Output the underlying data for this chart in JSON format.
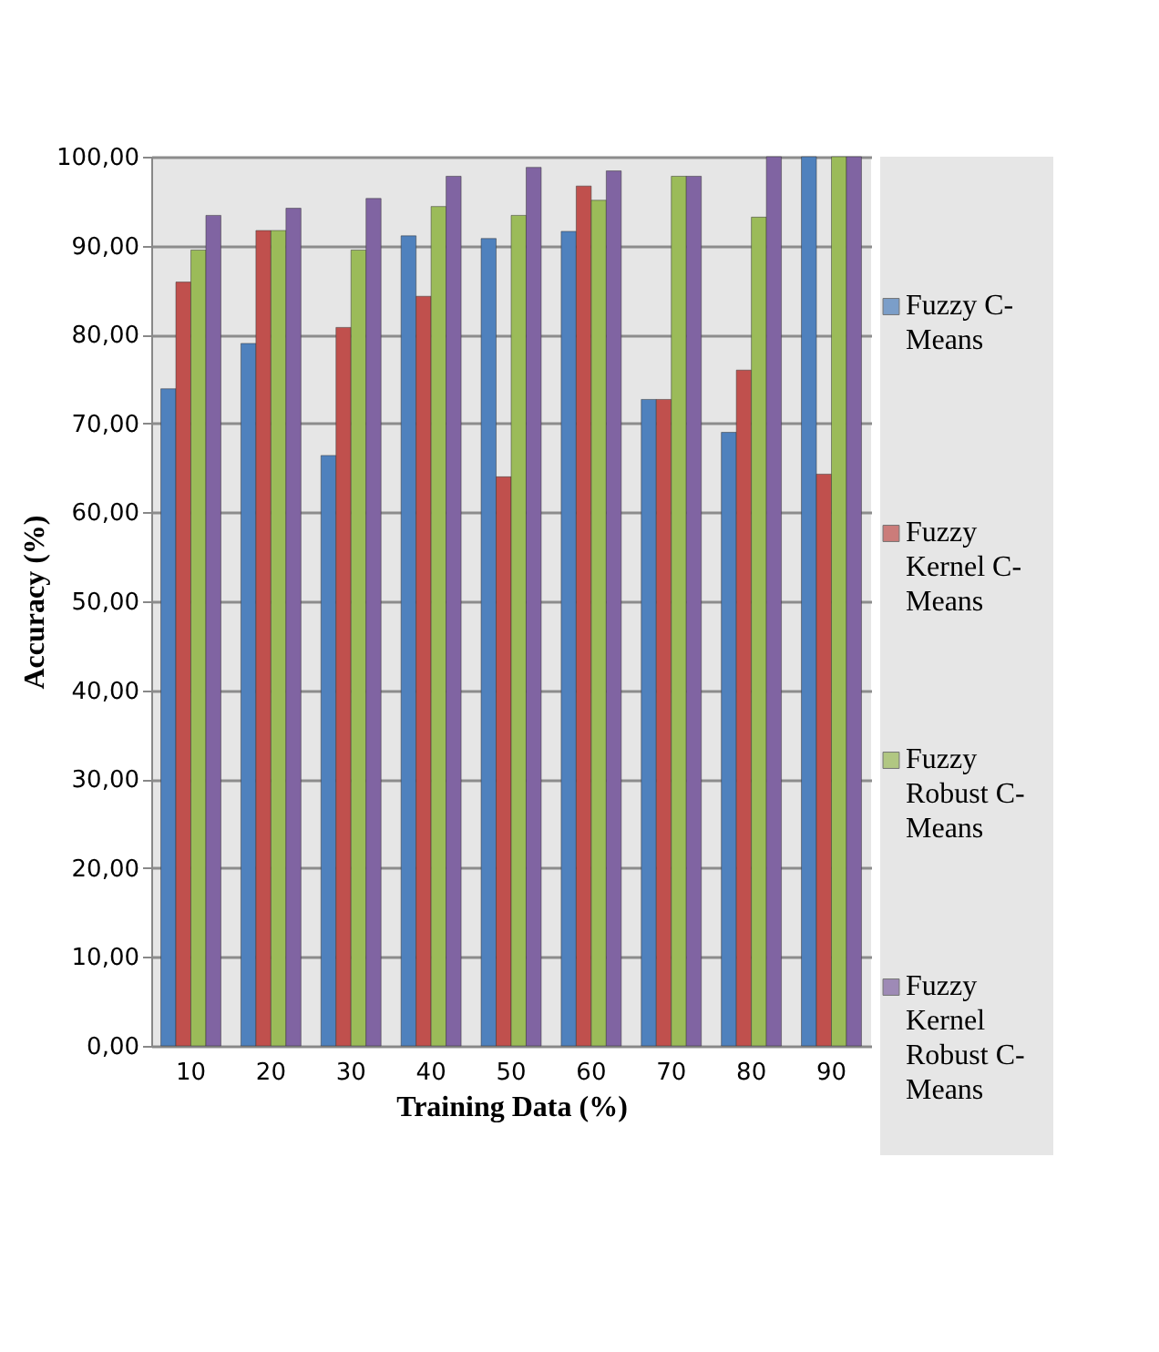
{
  "chart_data": {
    "type": "bar",
    "xlabel": "Training Data (%)",
    "ylabel": "Accuracy (%)",
    "categories": [
      "10",
      "20",
      "30",
      "40",
      "50",
      "60",
      "70",
      "80",
      "90"
    ],
    "series": [
      {
        "name": "Fuzzy C-Means",
        "color": "#4f81bd",
        "values": [
          73.9,
          79.0,
          66.4,
          91.1,
          90.8,
          91.6,
          72.7,
          69.0,
          100.0
        ]
      },
      {
        "name": "Fuzzy Kernel C-Means",
        "color": "#c0504d",
        "values": [
          85.9,
          91.7,
          80.8,
          84.3,
          64.0,
          96.7,
          72.7,
          76.0,
          64.3
        ]
      },
      {
        "name": "Fuzzy Robust C-Means",
        "color": "#9bbb59",
        "values": [
          89.5,
          91.7,
          89.5,
          94.4,
          93.4,
          95.1,
          97.8,
          93.2,
          100.0
        ]
      },
      {
        "name": "Fuzzy Kernel Robust C-Means",
        "color": "#8064a2",
        "values": [
          93.4,
          94.2,
          95.3,
          97.8,
          98.8,
          98.4,
          97.8,
          100.0,
          100.0
        ]
      }
    ],
    "ylim": [
      0,
      100
    ],
    "yticks": [
      {
        "value": 0,
        "label": "0,00"
      },
      {
        "value": 10,
        "label": "10,00"
      },
      {
        "value": 20,
        "label": "20,00"
      },
      {
        "value": 30,
        "label": "30,00"
      },
      {
        "value": 40,
        "label": "40,00"
      },
      {
        "value": 50,
        "label": "50,00"
      },
      {
        "value": 60,
        "label": "60,00"
      },
      {
        "value": 70,
        "label": "70,00"
      },
      {
        "value": 80,
        "label": "80,00"
      },
      {
        "value": 90,
        "label": "90,00"
      },
      {
        "value": 100,
        "label": "100,00"
      }
    ],
    "grid": "y",
    "legend": "right"
  }
}
